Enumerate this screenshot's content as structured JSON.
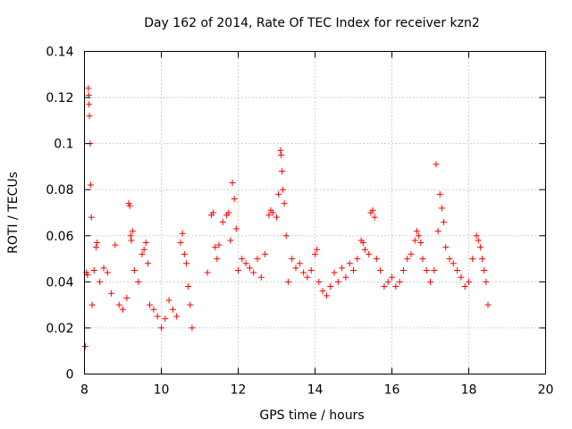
{
  "chart_data": {
    "type": "scatter",
    "title": "Day 162 of 2014, Rate Of TEC Index for receiver kzn2",
    "xlabel": "GPS time / hours",
    "ylabel": "ROTI / TECUs",
    "xlim": [
      8,
      20
    ],
    "ylim": [
      0,
      0.14
    ],
    "xticks": [
      8,
      10,
      12,
      14,
      16,
      18,
      20
    ],
    "xtick_labels": [
      "8",
      "10",
      "12",
      "14",
      "16",
      "18",
      "20"
    ],
    "yticks": [
      0,
      0.02,
      0.04,
      0.06,
      0.08,
      0.1,
      0.12,
      0.14
    ],
    "ytick_labels": [
      "0",
      "0.02",
      "0.04",
      "0.06",
      "0.08",
      "0.1",
      "0.12",
      "0.14"
    ],
    "grid": true,
    "marker": "plus",
    "color": "#ff0000",
    "series": [
      {
        "name": "ROTI",
        "points": [
          [
            8.02,
            0.012
          ],
          [
            8.05,
            0.044
          ],
          [
            8.08,
            0.043
          ],
          [
            8.1,
            0.124
          ],
          [
            8.11,
            0.121
          ],
          [
            8.12,
            0.117
          ],
          [
            8.13,
            0.112
          ],
          [
            8.15,
            0.1
          ],
          [
            8.16,
            0.082
          ],
          [
            8.18,
            0.068
          ],
          [
            8.2,
            0.03
          ],
          [
            8.25,
            0.045
          ],
          [
            8.3,
            0.055
          ],
          [
            8.33,
            0.057
          ],
          [
            8.4,
            0.04
          ],
          [
            8.5,
            0.046
          ],
          [
            8.6,
            0.044
          ],
          [
            8.7,
            0.035
          ],
          [
            8.8,
            0.056
          ],
          [
            8.9,
            0.03
          ],
          [
            9.0,
            0.028
          ],
          [
            9.1,
            0.033
          ],
          [
            9.15,
            0.074
          ],
          [
            9.18,
            0.073
          ],
          [
            9.2,
            0.06
          ],
          [
            9.22,
            0.058
          ],
          [
            9.25,
            0.062
          ],
          [
            9.3,
            0.045
          ],
          [
            9.4,
            0.04
          ],
          [
            9.5,
            0.052
          ],
          [
            9.55,
            0.054
          ],
          [
            9.6,
            0.057
          ],
          [
            9.65,
            0.048
          ],
          [
            9.7,
            0.03
          ],
          [
            9.8,
            0.028
          ],
          [
            9.9,
            0.025
          ],
          [
            10.0,
            0.02
          ],
          [
            10.1,
            0.024
          ],
          [
            10.2,
            0.032
          ],
          [
            10.3,
            0.028
          ],
          [
            10.4,
            0.025
          ],
          [
            10.5,
            0.057
          ],
          [
            10.55,
            0.061
          ],
          [
            10.6,
            0.052
          ],
          [
            10.65,
            0.048
          ],
          [
            10.7,
            0.038
          ],
          [
            10.75,
            0.03
          ],
          [
            10.8,
            0.02
          ],
          [
            11.2,
            0.044
          ],
          [
            11.3,
            0.069
          ],
          [
            11.35,
            0.07
          ],
          [
            11.4,
            0.055
          ],
          [
            11.45,
            0.05
          ],
          [
            11.5,
            0.056
          ],
          [
            11.6,
            0.066
          ],
          [
            11.7,
            0.069
          ],
          [
            11.75,
            0.07
          ],
          [
            11.8,
            0.058
          ],
          [
            11.85,
            0.083
          ],
          [
            11.9,
            0.076
          ],
          [
            11.95,
            0.063
          ],
          [
            12.0,
            0.045
          ],
          [
            12.1,
            0.05
          ],
          [
            12.2,
            0.048
          ],
          [
            12.3,
            0.046
          ],
          [
            12.4,
            0.044
          ],
          [
            12.5,
            0.05
          ],
          [
            12.6,
            0.042
          ],
          [
            12.7,
            0.052
          ],
          [
            12.8,
            0.069
          ],
          [
            12.85,
            0.071
          ],
          [
            12.9,
            0.07
          ],
          [
            13.0,
            0.068
          ],
          [
            13.05,
            0.078
          ],
          [
            13.1,
            0.097
          ],
          [
            13.12,
            0.095
          ],
          [
            13.14,
            0.088
          ],
          [
            13.16,
            0.08
          ],
          [
            13.2,
            0.074
          ],
          [
            13.25,
            0.06
          ],
          [
            13.3,
            0.04
          ],
          [
            13.4,
            0.05
          ],
          [
            13.5,
            0.046
          ],
          [
            13.6,
            0.048
          ],
          [
            13.7,
            0.044
          ],
          [
            13.8,
            0.042
          ],
          [
            13.9,
            0.045
          ],
          [
            14.0,
            0.052
          ],
          [
            14.05,
            0.054
          ],
          [
            14.1,
            0.04
          ],
          [
            14.2,
            0.036
          ],
          [
            14.3,
            0.034
          ],
          [
            14.4,
            0.038
          ],
          [
            14.5,
            0.044
          ],
          [
            14.6,
            0.04
          ],
          [
            14.7,
            0.046
          ],
          [
            14.8,
            0.042
          ],
          [
            14.9,
            0.048
          ],
          [
            15.0,
            0.045
          ],
          [
            15.1,
            0.05
          ],
          [
            15.2,
            0.058
          ],
          [
            15.25,
            0.057
          ],
          [
            15.3,
            0.054
          ],
          [
            15.4,
            0.052
          ],
          [
            15.45,
            0.07
          ],
          [
            15.5,
            0.071
          ],
          [
            15.55,
            0.068
          ],
          [
            15.6,
            0.05
          ],
          [
            15.7,
            0.045
          ],
          [
            15.8,
            0.038
          ],
          [
            15.9,
            0.04
          ],
          [
            16.0,
            0.042
          ],
          [
            16.1,
            0.038
          ],
          [
            16.2,
            0.04
          ],
          [
            16.3,
            0.045
          ],
          [
            16.4,
            0.05
          ],
          [
            16.5,
            0.052
          ],
          [
            16.6,
            0.058
          ],
          [
            16.65,
            0.062
          ],
          [
            16.7,
            0.06
          ],
          [
            16.75,
            0.057
          ],
          [
            16.8,
            0.05
          ],
          [
            16.9,
            0.045
          ],
          [
            17.0,
            0.04
          ],
          [
            17.1,
            0.045
          ],
          [
            17.15,
            0.091
          ],
          [
            17.2,
            0.062
          ],
          [
            17.25,
            0.078
          ],
          [
            17.3,
            0.072
          ],
          [
            17.35,
            0.066
          ],
          [
            17.4,
            0.055
          ],
          [
            17.5,
            0.05
          ],
          [
            17.6,
            0.048
          ],
          [
            17.7,
            0.045
          ],
          [
            17.8,
            0.042
          ],
          [
            17.9,
            0.038
          ],
          [
            18.0,
            0.04
          ],
          [
            18.1,
            0.05
          ],
          [
            18.2,
            0.06
          ],
          [
            18.25,
            0.058
          ],
          [
            18.3,
            0.055
          ],
          [
            18.35,
            0.05
          ],
          [
            18.4,
            0.045
          ],
          [
            18.45,
            0.04
          ],
          [
            18.5,
            0.03
          ]
        ]
      }
    ]
  }
}
